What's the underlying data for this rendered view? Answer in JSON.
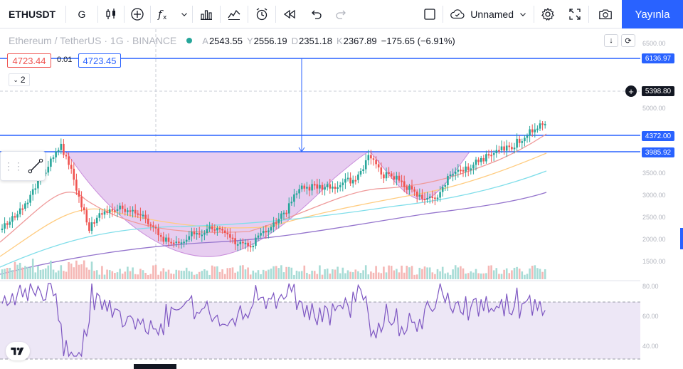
{
  "toolbar": {
    "symbol": "ETHUSDT",
    "interval": "G",
    "layout_name": "Unnamed",
    "publish_label": "Yayınla"
  },
  "legend": {
    "name": "Ethereum / TetherUS · 1G · BINANCE",
    "o_key": "A",
    "o_val": "2543.55",
    "h_key": "Y",
    "h_val": "2556.19",
    "l_key": "D",
    "l_val": "2351.18",
    "c_key": "K",
    "c_val": "2367.89",
    "change": "−175.65 (−6.91%)"
  },
  "order": {
    "sell": "4723.44",
    "spread": "0.01",
    "buy": "4723.45",
    "indicators_count": "2"
  },
  "axis": {
    "labels": [
      "6500.00",
      "5000.00",
      "3500.00",
      "3000.00",
      "2500.00",
      "2000.00",
      "1500.00",
      "80.00",
      "60.00",
      "40.00"
    ],
    "tag_top": "6136.97",
    "tag_cross": "5398.80",
    "tag_mid": "4372.00",
    "tag_low": "3985.92"
  },
  "colors": {
    "accent": "#2962ff",
    "bull": "#26a69a",
    "bear": "#ef5350",
    "cup_fill": "#e7cdf0",
    "rsi_fill": "#ede7f6",
    "rsi_line": "#7e57c2"
  },
  "icons": [
    "candles-icon",
    "plus-circle-icon",
    "fx-icon",
    "bars-icon",
    "compare-icon",
    "alarm-icon",
    "replay-icon",
    "undo-icon",
    "redo-icon",
    "fullscreen-icon",
    "settings-icon",
    "cloud-icon",
    "camera-icon"
  ]
}
